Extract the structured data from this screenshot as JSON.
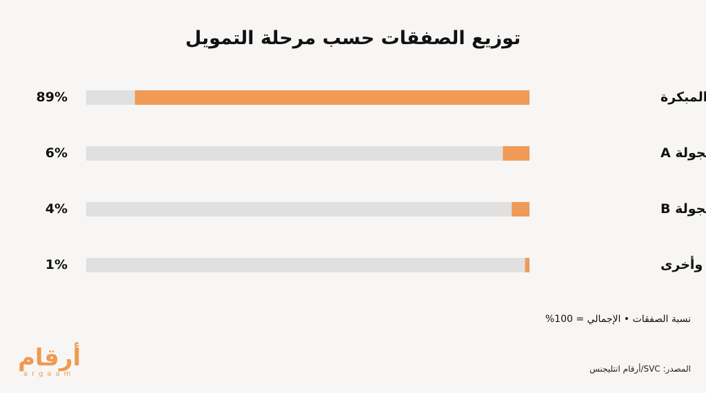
{
  "title": "توزيع الصفقات حسب مرحلة التمويل",
  "note": "نسبة الصفقات • الإجمالي = 100%",
  "source": "المصدر: SVC/أرقام انتليجنس",
  "logo": {
    "arabic": "أرقام",
    "latin": "argaam"
  },
  "colors": {
    "bar": "#ef9a56",
    "track": "#e0e0e0",
    "background": "#f7f6f4"
  },
  "chart_data": {
    "type": "bar",
    "orientation": "horizontal",
    "direction": "right-to-left",
    "title": "توزيع الصفقات حسب مرحلة التمويل",
    "categories": [
      "المرحلة المبكرة",
      "الجولة A",
      "الجولة B",
      "مراحل لاحقة وأخرى"
    ],
    "values": [
      89,
      6,
      4,
      1
    ],
    "value_labels": [
      "89%",
      "6%",
      "4%",
      "1%"
    ],
    "unit": "%",
    "xlim": [
      0,
      100
    ],
    "grid": false,
    "legend": "none"
  }
}
